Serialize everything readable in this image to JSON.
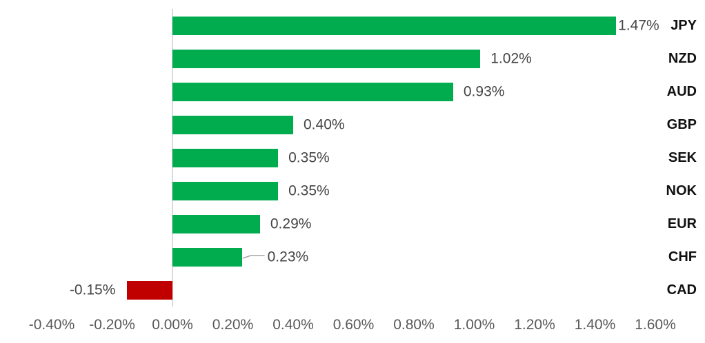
{
  "chart_data": {
    "type": "bar",
    "orientation": "horizontal",
    "title": "",
    "xlabel": "",
    "ylabel": "",
    "categories": [
      "JPY",
      "NZD",
      "AUD",
      "GBP",
      "SEK",
      "NOK",
      "EUR",
      "CHF",
      "CAD"
    ],
    "values": [
      1.47,
      1.02,
      0.93,
      0.4,
      0.35,
      0.35,
      0.29,
      0.23,
      -0.15
    ],
    "value_labels": [
      "1.47%",
      "1.02%",
      "0.93%",
      "0.40%",
      "0.35%",
      "0.35%",
      "0.29%",
      "0.23%",
      "-0.15%"
    ],
    "xlim": [
      -0.4,
      1.6
    ],
    "tick_values": [
      -0.4,
      -0.2,
      0.0,
      0.2,
      0.4,
      0.6,
      0.8,
      1.0,
      1.2,
      1.4,
      1.6
    ],
    "tick_labels": [
      "-0.40%",
      "-0.20%",
      "0.00%",
      "0.20%",
      "0.40%",
      "0.60%",
      "0.80%",
      "1.00%",
      "1.20%",
      "1.40%",
      "1.60%"
    ],
    "grid": false,
    "legend": "none",
    "colors": {
      "positive_bar": "#00ac4e",
      "negative_bar": "#c00000",
      "axis_line": "#d9d9d9",
      "tick_text": "#595959",
      "value_text": "#454545",
      "category_text": "#111111",
      "leader_line": "#a6a6a6",
      "background": "#ffffff"
    }
  }
}
